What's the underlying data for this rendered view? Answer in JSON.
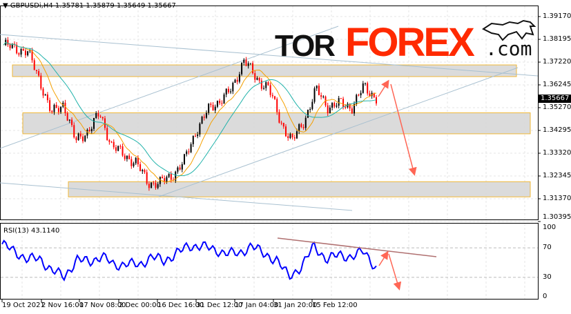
{
  "header": {
    "symbol_title": "GBPUSDi,H4  1.35781 1.35879 1.35649 1.35667"
  },
  "logo": {
    "text_dark": "TOR",
    "text_red": "FOREX",
    "text_suffix": ".com",
    "icon": "bull-icon"
  },
  "price_axis": {
    "ticks": [
      "1.39170",
      "1.38195",
      "1.37220",
      "1.36245",
      "1.35270",
      "1.34295",
      "1.33320",
      "1.32345",
      "1.31370",
      "1.30395"
    ],
    "current_price": "1.35667"
  },
  "rsi": {
    "title": "RSI(13) 43.1140",
    "ticks": [
      "100",
      "70",
      "30",
      "0"
    ]
  },
  "time_axis": {
    "ticks": [
      "19 Oct 2021",
      "2 Nov 16:00",
      "17 Nov 08:00",
      "2 Dec 00:00",
      "16 Dec 16:00",
      "31 Dec 12:00",
      "17 Jan 04:00",
      "31 Jan 20:00",
      "15 Feb 12:00"
    ]
  },
  "colors": {
    "bull": "#000000",
    "bear": "#ff0000",
    "ma_fast": "#f5a000",
    "ma_slow": "#20b2aa",
    "rsi": "#0000ff",
    "zone": "#d8d8d8",
    "zone_border": "#f0b020",
    "arrow": "#ff6655",
    "channel": "#a8c0d0"
  },
  "chart_data": {
    "type": "candlestick",
    "symbol": "GBPUSDi",
    "timeframe": "H4",
    "ylim": [
      1.30395,
      1.3917
    ],
    "close_path": [
      1.3795,
      1.3781,
      1.3766,
      1.3648,
      1.35,
      1.3545,
      1.3382,
      1.3427,
      1.35,
      1.3367,
      1.3323,
      1.3294,
      1.3205,
      1.3205,
      1.3235,
      1.3294,
      1.3427,
      1.3515,
      1.356,
      1.3604,
      1.3737,
      1.3648,
      1.3619,
      1.3471,
      1.3382,
      1.3471,
      1.3604,
      1.353,
      1.3545,
      1.353,
      1.3619,
      1.3567
    ],
    "rsi_path": [
      75,
      65,
      55,
      55,
      40,
      30,
      55,
      50,
      60,
      45,
      50,
      45,
      60,
      50,
      65,
      70,
      75,
      65,
      65,
      60,
      75,
      60,
      55,
      30,
      45,
      72,
      55,
      60,
      58,
      65,
      43
    ],
    "rsi_levels": [
      70,
      30
    ],
    "zones": [
      [
        1.366,
        1.371
      ],
      [
        1.3415,
        1.3505
      ],
      [
        1.3145,
        1.321
      ]
    ]
  }
}
